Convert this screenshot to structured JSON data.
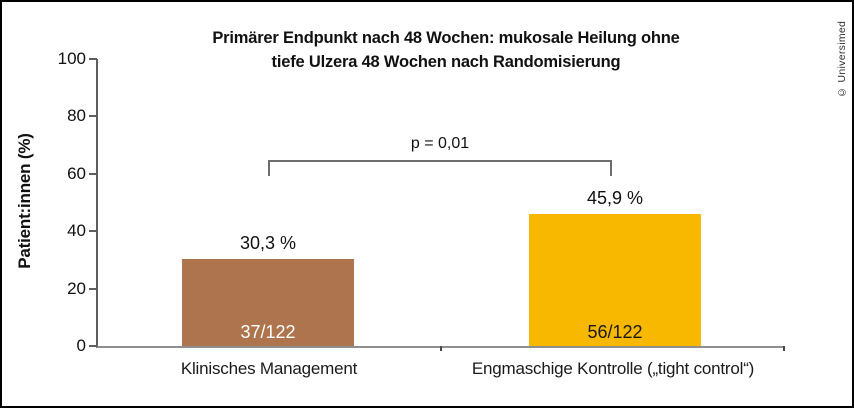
{
  "watermark": "© Universimed",
  "chart_data": {
    "type": "bar",
    "title": "Primärer Endpunkt nach 48 Wochen: mukosale Heilung ohne\ntiefe Ulzera 48 Wochen nach Randomisierung",
    "ylabel": "Patient:innen (%)",
    "xlabel": "",
    "categories": [
      "Klinisches Management",
      "Engmaschige Kontrolle („tight control“)"
    ],
    "values": [
      30.3,
      45.9
    ],
    "value_labels": [
      "30,3 %",
      "45,9 %"
    ],
    "fraction_labels": [
      "37/122",
      "56/122"
    ],
    "bar_colors": [
      "#ae744e",
      "#f9b800"
    ],
    "fraction_label_colors": [
      "#ffffff",
      "#1a1a1a"
    ],
    "ylim": [
      0,
      100
    ],
    "yticks": [
      100,
      80,
      60,
      40,
      20,
      0
    ],
    "grid": false,
    "legend_position": "none",
    "annotation": {
      "p_label": "p = 0,01"
    }
  }
}
